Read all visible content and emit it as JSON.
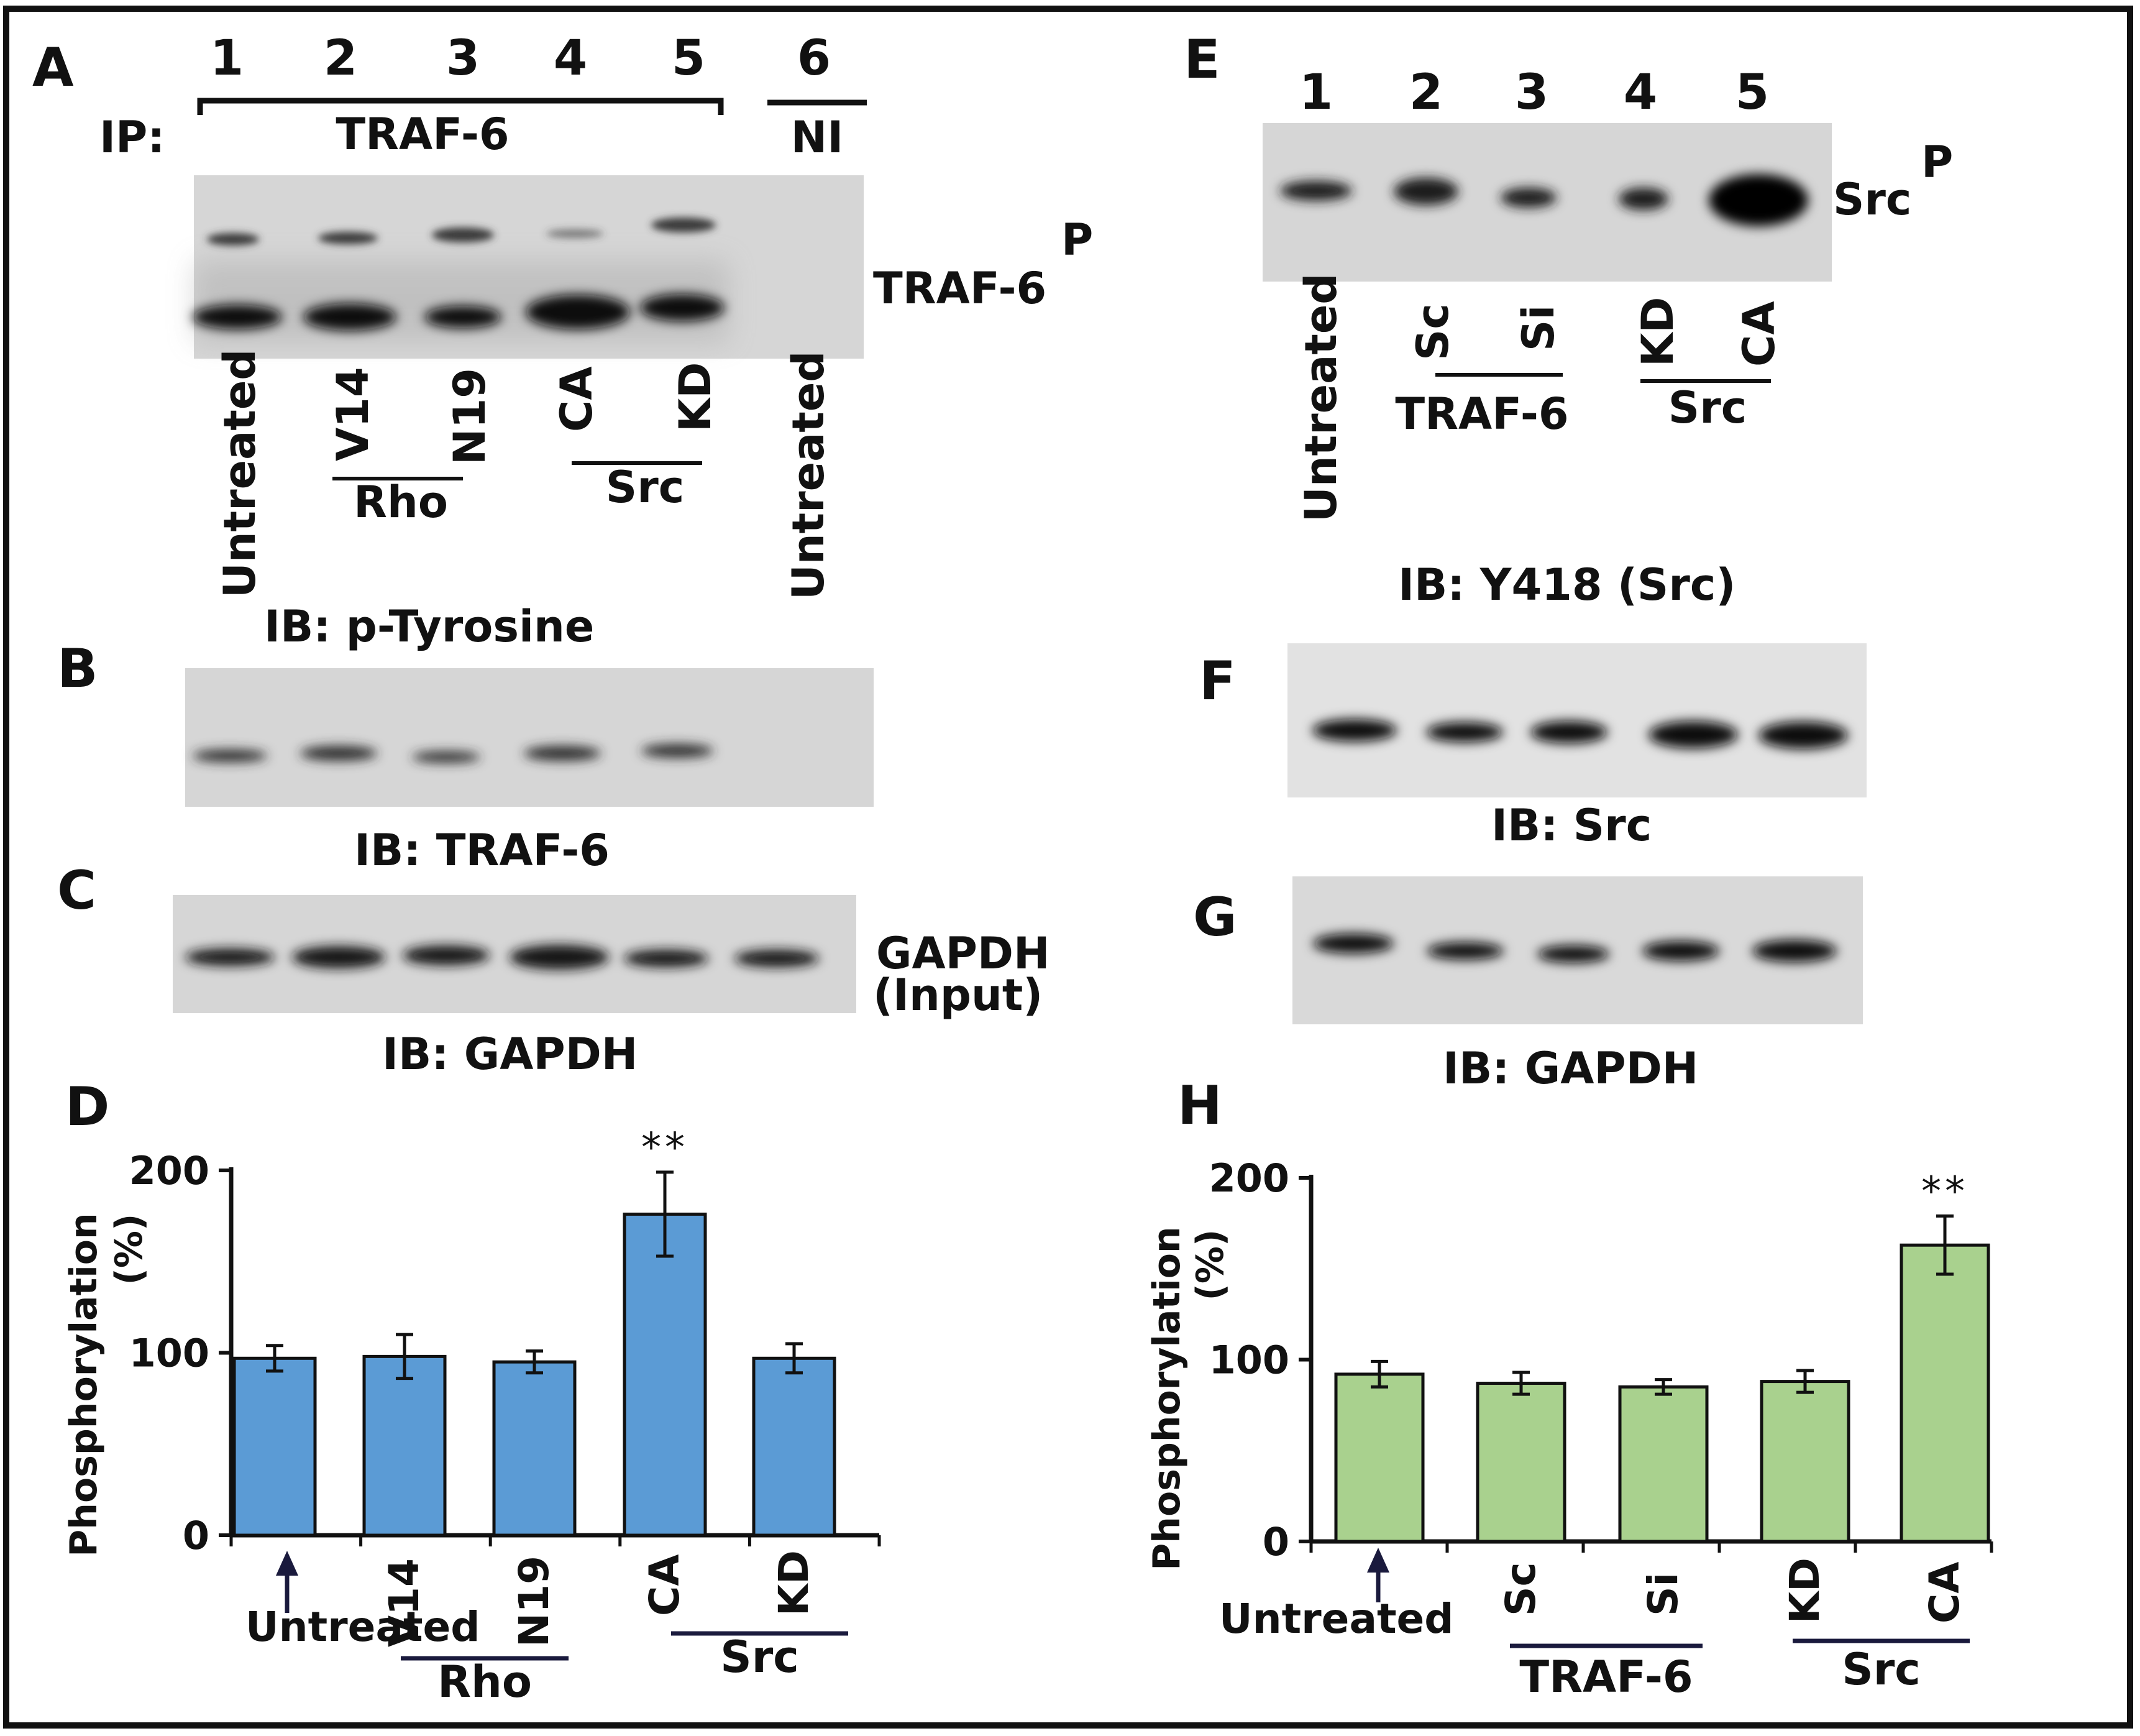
{
  "panels": {
    "A": {
      "letter": "A",
      "lane_numbers": [
        "1",
        "2",
        "3",
        "4",
        "5",
        "6"
      ],
      "ip_label": "IP:",
      "ip_target": "TRAF-6",
      "ni_label": "NI",
      "band_label": "TRAF-6",
      "band_superscript": "P",
      "lane_labels": [
        "Untreated",
        "V14",
        "N19",
        "CA",
        "KD",
        "Untreated"
      ],
      "group_rho": "Rho",
      "group_src": "Src",
      "caption": "IB: p-Tyrosine"
    },
    "B": {
      "letter": "B",
      "caption": "IB: TRAF-6"
    },
    "C": {
      "letter": "C",
      "caption": "IB: GAPDH",
      "band_label_1": "GAPDH",
      "band_label_2": "(Input)"
    },
    "E": {
      "letter": "E",
      "lane_numbers": [
        "1",
        "2",
        "3",
        "4",
        "5"
      ],
      "band_label": "Src",
      "band_superscript": "P",
      "lane_labels": [
        "Untreated",
        "Sc",
        "Si",
        "KD",
        "CA"
      ],
      "group_traf": "TRAF-6",
      "group_src": "Src",
      "caption": "IB: Y418 (Src)"
    },
    "F": {
      "letter": "F",
      "caption": "IB: Src"
    },
    "G": {
      "letter": "G",
      "caption": "IB: GAPDH"
    }
  },
  "chart_data": [
    {
      "panel": "D",
      "letter": "D",
      "type": "bar",
      "ylabel_line1": "Phosphorylation",
      "ylabel_line2": "(%)",
      "ylim": [
        0,
        200
      ],
      "yticks": [
        0,
        100,
        200
      ],
      "categories": [
        "Untreated",
        "V14",
        "N19",
        "CA",
        "KD"
      ],
      "values": [
        97,
        98,
        95,
        176,
        97
      ],
      "errors": [
        7,
        12,
        6,
        23,
        8
      ],
      "significance": [
        "",
        "",
        "",
        "**",
        ""
      ],
      "groups": [
        {
          "label": "Rho",
          "members": [
            "V14",
            "N19"
          ]
        },
        {
          "label": "Src",
          "members": [
            "CA",
            "KD"
          ]
        }
      ],
      "color": "#5b9bd5"
    },
    {
      "panel": "H",
      "letter": "H",
      "type": "bar",
      "ylabel_line1": "Phosphorylation",
      "ylabel_line2": "(%)",
      "ylim": [
        0,
        200
      ],
      "yticks": [
        0,
        100,
        200
      ],
      "categories": [
        "Untreated",
        "Sc",
        "Si",
        "KD",
        "CA"
      ],
      "values": [
        92,
        87,
        85,
        88,
        163
      ],
      "errors": [
        7,
        6,
        4,
        6,
        16
      ],
      "significance": [
        "",
        "",
        "",
        "",
        "**"
      ],
      "groups": [
        {
          "label": "TRAF-6",
          "members": [
            "Sc",
            "Si"
          ]
        },
        {
          "label": "Src",
          "members": [
            "KD",
            "CA"
          ]
        }
      ],
      "color": "#a9d18e"
    }
  ],
  "colors": {
    "blot_bg": "#dcdcdc",
    "band": "#1a1a1a",
    "group_line": "#1a1a3d",
    "arrow": "#1a1a3d"
  }
}
